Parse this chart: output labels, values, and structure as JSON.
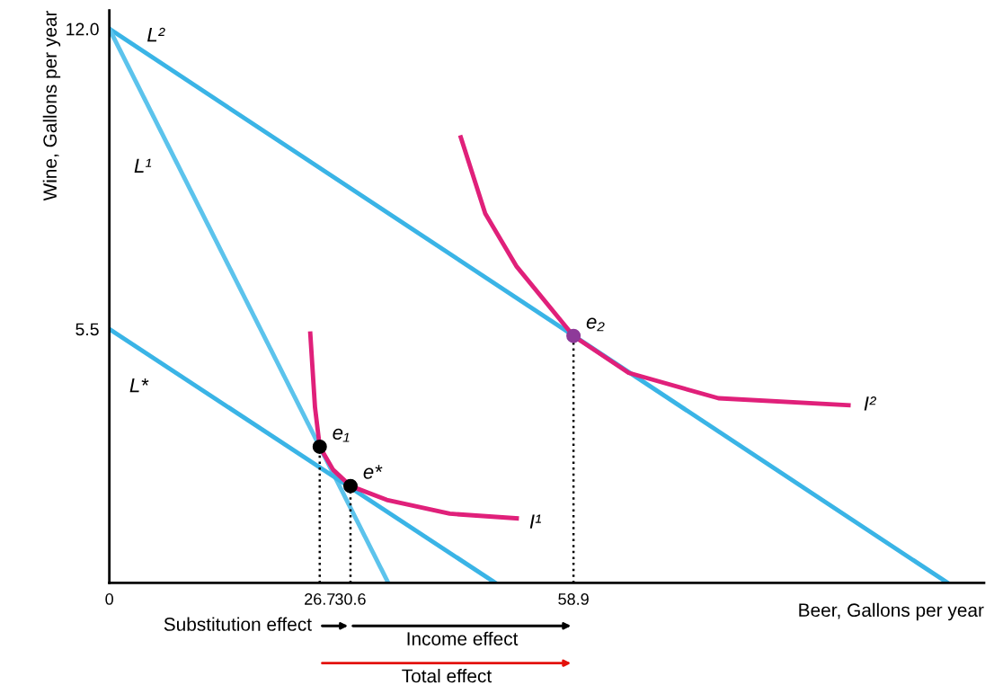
{
  "chart_data": {
    "type": "line",
    "xlabel": "Beer, Gallons per year",
    "ylabel": "Wine, Gallons per year",
    "xlim": [
      0,
      111
    ],
    "ylim": [
      0,
      12.4
    ],
    "xticks": [
      0,
      26.7,
      30.6,
      58.9
    ],
    "yticks": [
      5.5,
      {
        "value": 12,
        "label": "12.0"
      }
    ],
    "grid": false,
    "series": [
      {
        "name": "L²",
        "color": "#3ab4e6",
        "x": [
          0,
          106.4
        ],
        "values": [
          12,
          0
        ]
      },
      {
        "name": "L¹",
        "color": "#5cc3ec",
        "x": [
          0,
          35.4
        ],
        "values": [
          12,
          0
        ]
      },
      {
        "name": "L*",
        "color": "#3ab4e6",
        "x": [
          0,
          49.0
        ],
        "values": [
          5.5,
          0
        ]
      },
      {
        "name": "I¹",
        "color": "#e0207a",
        "x": [
          25.5,
          26.1,
          26.7,
          28.4,
          30.6,
          35.2,
          43.2,
          51.7
        ],
        "values": [
          5.4,
          3.8,
          2.95,
          2.45,
          2.1,
          1.8,
          1.5,
          1.4
        ]
      },
      {
        "name": "I²",
        "color": "#e0207a",
        "x": [
          44.6,
          47.7,
          51.7,
          58.9,
          65.9,
          77.3,
          93.8
        ],
        "values": [
          9.65,
          8.0,
          6.85,
          5.35,
          4.55,
          4.0,
          3.85
        ]
      },
      {
        "color": "#000000",
        "line_style": "dotted",
        "x": [
          26.7,
          26.7
        ],
        "values": [
          0,
          2.95
        ]
      },
      {
        "color": "#000000",
        "line_style": "dotted",
        "x": [
          30.6,
          30.6
        ],
        "values": [
          0,
          2.1
        ]
      },
      {
        "color": "#000000",
        "line_style": "dotted",
        "x": [
          58.9,
          58.9
        ],
        "values": [
          0,
          5.35
        ]
      },
      {
        "type": "scatter",
        "name": "e₁",
        "marker": "circle",
        "color": "#000000",
        "x": [
          26.7
        ],
        "values": [
          2.95
        ]
      },
      {
        "type": "scatter",
        "name": "e*",
        "marker": "circle",
        "color": "#000000",
        "x": [
          30.6
        ],
        "values": [
          2.1
        ]
      },
      {
        "type": "scatter",
        "name": "e₂",
        "marker": "circle",
        "color": "#8e3a99",
        "x": [
          58.9
        ],
        "values": [
          5.35
        ]
      }
    ],
    "annotations": [
      "Substitution effect",
      "Income effect",
      "Total effect"
    ]
  }
}
